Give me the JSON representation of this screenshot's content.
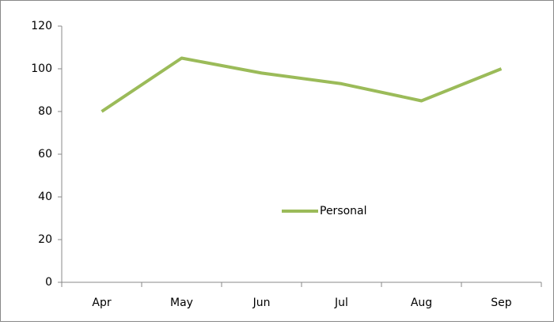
{
  "chart_data": {
    "type": "line",
    "categories": [
      "Apr",
      "May",
      "Jun",
      "Jul",
      "Aug",
      "Sep"
    ],
    "series": [
      {
        "name": "Personal",
        "color": "#9bbb59",
        "values": [
          80,
          105,
          98,
          93,
          85,
          100
        ]
      }
    ],
    "ylim": [
      0,
      120
    ],
    "yticks": [
      0,
      20,
      40,
      60,
      80,
      100,
      120
    ],
    "legend": "center",
    "grid": false
  }
}
